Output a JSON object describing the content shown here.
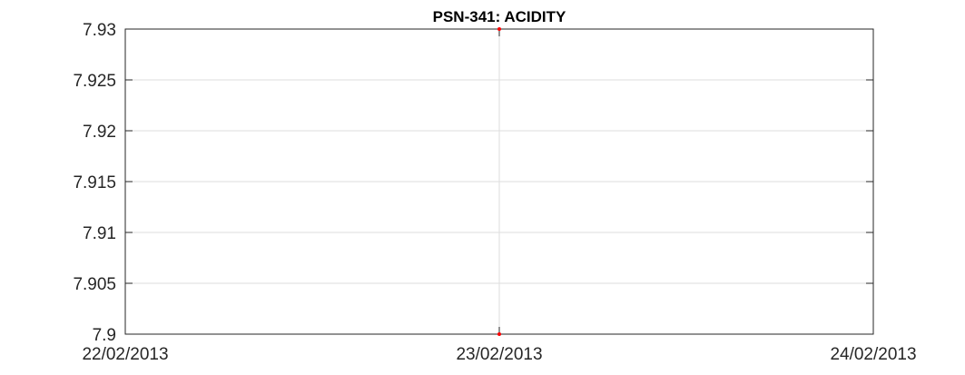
{
  "chart_data": {
    "type": "scatter",
    "title": "PSN-341: ACIDITY",
    "xlabel": "",
    "ylabel": "",
    "xlim": [
      "22/02/2013",
      "24/02/2013"
    ],
    "ylim": [
      7.9,
      7.93
    ],
    "x_ticks": [
      "22/02/2013",
      "23/02/2013",
      "24/02/2013"
    ],
    "y_ticks": [
      "7.9",
      "7.905",
      "7.91",
      "7.915",
      "7.92",
      "7.925",
      "7.93"
    ],
    "grid": true,
    "legend": "none",
    "series": [
      {
        "color": "#ff0000",
        "points": [
          {
            "x": "23/02/2013",
            "y": 7.93
          },
          {
            "x": "23/02/2013",
            "y": 7.9
          }
        ]
      }
    ]
  },
  "colors": {
    "axis": "#262626",
    "grid": "#dedede",
    "marker": "#ff0000",
    "background": "#ffffff"
  }
}
